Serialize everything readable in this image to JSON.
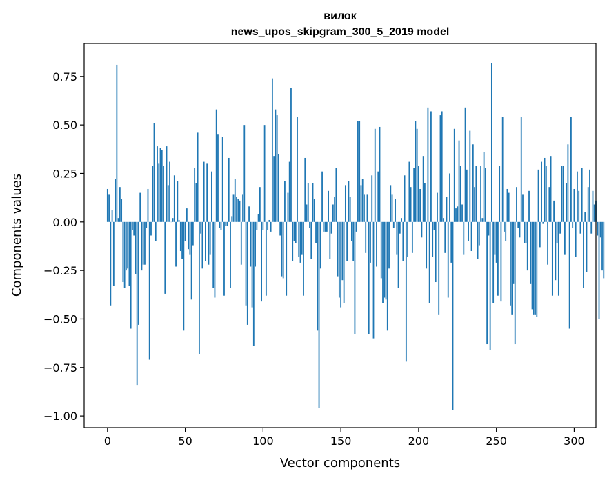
{
  "chart_data": {
    "type": "bar",
    "title_line1": "вилок",
    "title_line2": "news_upos_skipgram_300_5_2019 model",
    "xlabel": "Vector components",
    "ylabel": "Components values",
    "xlim": [
      -15,
      314
    ],
    "ylim": [
      -1.06,
      0.92
    ],
    "xticks": [
      0,
      50,
      100,
      150,
      200,
      250,
      300
    ],
    "xtick_labels": [
      "0",
      "50",
      "100",
      "150",
      "200",
      "250",
      "300"
    ],
    "yticks": [
      -1.0,
      -0.75,
      -0.5,
      -0.25,
      0.0,
      0.25,
      0.5,
      0.75
    ],
    "ytick_labels": [
      "−1.00",
      "−0.75",
      "−0.50",
      "−0.25",
      "0.00",
      "0.25",
      "0.50",
      "0.75"
    ],
    "bar_color": "#1f77b4",
    "values": [
      0.17,
      0.14,
      -0.43,
      0.06,
      -0.33,
      0.22,
      0.81,
      0.02,
      0.18,
      0.12,
      -0.31,
      -0.34,
      -0.25,
      -0.24,
      -0.33,
      -0.55,
      -0.04,
      -0.07,
      -0.27,
      -0.84,
      -0.53,
      0.15,
      -0.25,
      -0.22,
      -0.22,
      -0.03,
      0.17,
      -0.71,
      -0.07,
      0.29,
      0.51,
      -0.1,
      0.39,
      0.3,
      0.38,
      0.37,
      0.29,
      -0.37,
      0.39,
      0.19,
      0.31,
      0.0,
      0.02,
      0.24,
      -0.23,
      0.21,
      0.01,
      -0.15,
      -0.19,
      -0.56,
      -0.1,
      0.07,
      -0.14,
      -0.17,
      -0.4,
      -0.12,
      0.28,
      0.2,
      0.46,
      -0.68,
      -0.06,
      -0.24,
      0.31,
      -0.2,
      0.3,
      -0.22,
      -0.17,
      0.26,
      -0.34,
      -0.39,
      0.58,
      0.45,
      -0.03,
      -0.04,
      0.44,
      -0.38,
      -0.02,
      -0.02,
      0.33,
      -0.34,
      0.03,
      0.14,
      0.22,
      0.13,
      0.12,
      0.11,
      -0.22,
      0.14,
      0.5,
      -0.43,
      -0.53,
      0.08,
      -0.23,
      -0.44,
      -0.64,
      -0.23,
      -0.04,
      0.04,
      0.18,
      -0.41,
      -0.04,
      0.5,
      -0.38,
      -0.04,
      0.01,
      -0.05,
      0.74,
      0.34,
      0.58,
      0.55,
      0.35,
      -0.07,
      -0.28,
      -0.29,
      0.21,
      -0.38,
      0.15,
      0.31,
      0.69,
      -0.2,
      -0.1,
      -0.11,
      0.54,
      -0.18,
      -0.21,
      -0.17,
      -0.38,
      0.33,
      0.09,
      0.2,
      -0.03,
      -0.19,
      0.2,
      0.12,
      -0.11,
      -0.56,
      -0.96,
      -0.24,
      0.26,
      -0.05,
      -0.05,
      -0.05,
      0.16,
      -0.19,
      -0.06,
      0.09,
      0.13,
      0.28,
      -0.28,
      -0.39,
      -0.44,
      -0.3,
      -0.42,
      0.19,
      -0.2,
      0.21,
      0.13,
      -0.1,
      -0.2,
      -0.58,
      -0.05,
      0.52,
      0.52,
      0.19,
      0.22,
      0.14,
      -0.16,
      0.14,
      -0.58,
      -0.21,
      0.24,
      -0.6,
      0.48,
      -0.23,
      0.26,
      0.49,
      -0.29,
      -0.42,
      -0.39,
      -0.4,
      -0.56,
      -0.24,
      0.19,
      0.14,
      -0.03,
      0.12,
      -0.17,
      -0.34,
      -0.06,
      0.02,
      -0.2,
      0.24,
      -0.72,
      -0.18,
      0.31,
      0.18,
      -0.16,
      0.28,
      0.52,
      0.48,
      0.29,
      0.17,
      -0.08,
      0.34,
      0.2,
      -0.24,
      0.59,
      -0.42,
      0.57,
      -0.18,
      -0.04,
      -0.31,
      0.15,
      -0.48,
      0.55,
      0.57,
      0.02,
      -0.16,
      0.13,
      -0.39,
      0.25,
      -0.21,
      -0.97,
      0.48,
      0.07,
      0.08,
      0.42,
      0.29,
      0.09,
      -0.17,
      0.59,
      0.27,
      -0.1,
      0.47,
      -0.15,
      0.4,
      0.18,
      0.29,
      -0.19,
      -0.12,
      0.29,
      0.02,
      0.36,
      0.28,
      -0.63,
      -0.07,
      -0.66,
      0.82,
      -0.42,
      -0.17,
      -0.21,
      -0.38,
      0.29,
      -0.41,
      0.54,
      -0.05,
      -0.1,
      0.17,
      0.15,
      -0.43,
      -0.48,
      -0.32,
      -0.63,
      0.18,
      -0.03,
      -0.08,
      0.54,
      0.14,
      -0.11,
      -0.11,
      -0.25,
      0.16,
      -0.32,
      -0.45,
      -0.48,
      -0.48,
      -0.49,
      0.27,
      -0.13,
      0.31,
      -0.01,
      0.33,
      0.29,
      -0.22,
      0.18,
      0.34,
      -0.38,
      0.11,
      -0.3,
      -0.11,
      -0.38,
      -0.06,
      0.29,
      0.29,
      -0.17,
      0.2,
      0.4,
      -0.55,
      0.54,
      -0.03,
      0.17,
      -0.18,
      0.26,
      0.16,
      -0.06,
      0.28,
      -0.34,
      0.05,
      -0.26,
      0.18,
      0.27,
      -0.06,
      0.16,
      0.09,
      0.11,
      -0.07,
      -0.5,
      -0.08,
      -0.25,
      -0.29
    ]
  }
}
